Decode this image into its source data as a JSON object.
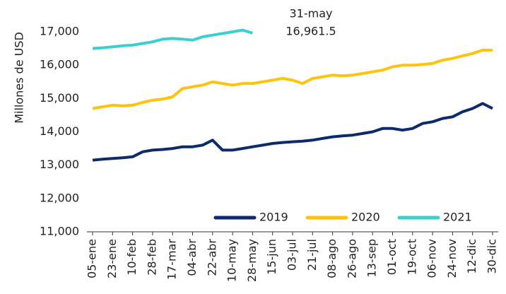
{
  "chart_data": {
    "type": "line",
    "y_label": "Millones de USD",
    "annotation": {
      "date": "31-may",
      "value": "16,961.5"
    },
    "categories": [
      "05-ene",
      null,
      "23-ene",
      null,
      "10-feb",
      null,
      "28-feb",
      null,
      "17-mar",
      null,
      "04-abr",
      null,
      "22-abr",
      null,
      "10-may",
      null,
      "28-may",
      null,
      "15-jun",
      null,
      "03-jul",
      null,
      "21-jul",
      null,
      "08-ago",
      null,
      "26-ago",
      null,
      "13-sep",
      null,
      "01-oct",
      null,
      "19-oct",
      null,
      "06-nov",
      null,
      "24-nov",
      null,
      "12-dic",
      null,
      "30-dic"
    ],
    "series": [
      {
        "name": "2019",
        "color": "#0d2a6b",
        "values": [
          13150,
          13180,
          13200,
          13220,
          13250,
          13400,
          13450,
          13470,
          13500,
          13550,
          13550,
          13600,
          13750,
          13450,
          13450,
          13500,
          13550,
          13600,
          13650,
          13680,
          13700,
          13720,
          13750,
          13800,
          13850,
          13880,
          13900,
          13950,
          14000,
          14100,
          14100,
          14050,
          14100,
          14250,
          14300,
          14400,
          14450,
          14600,
          14700,
          14850,
          14700
        ]
      },
      {
        "name": "2020",
        "color": "#ffc20e",
        "values": [
          14700,
          14750,
          14800,
          14780,
          14800,
          14880,
          14950,
          14980,
          15050,
          15300,
          15350,
          15400,
          15500,
          15450,
          15400,
          15450,
          15450,
          15500,
          15550,
          15600,
          15550,
          15450,
          15600,
          15650,
          15700,
          15680,
          15700,
          15750,
          15800,
          15850,
          15950,
          16000,
          16000,
          16020,
          16050,
          16150,
          16200,
          16280,
          16350,
          16450,
          16450
        ]
      },
      {
        "name": "2021",
        "color": "#3ccfd0",
        "values": [
          16500,
          16520,
          16550,
          16580,
          16600,
          16650,
          16700,
          16780,
          16800,
          16780,
          16750,
          16850,
          16900,
          16950,
          17000,
          17050,
          16961.5,
          null,
          null,
          null,
          null,
          null,
          null,
          null,
          null,
          null,
          null,
          null,
          null,
          null,
          null,
          null,
          null,
          null,
          null,
          null,
          null,
          null,
          null,
          null,
          null
        ]
      }
    ],
    "ylim": [
      11000,
      17000
    ],
    "yticks": [
      {
        "value": 11000,
        "label": "11,000"
      },
      {
        "value": 12000,
        "label": "12,000"
      },
      {
        "value": 13000,
        "label": "13,000"
      },
      {
        "value": 14000,
        "label": "14,000"
      },
      {
        "value": 15000,
        "label": "15,000"
      },
      {
        "value": 16000,
        "label": "16,000"
      },
      {
        "value": 17000,
        "label": "17,000"
      }
    ],
    "legend": "bottom-right"
  }
}
